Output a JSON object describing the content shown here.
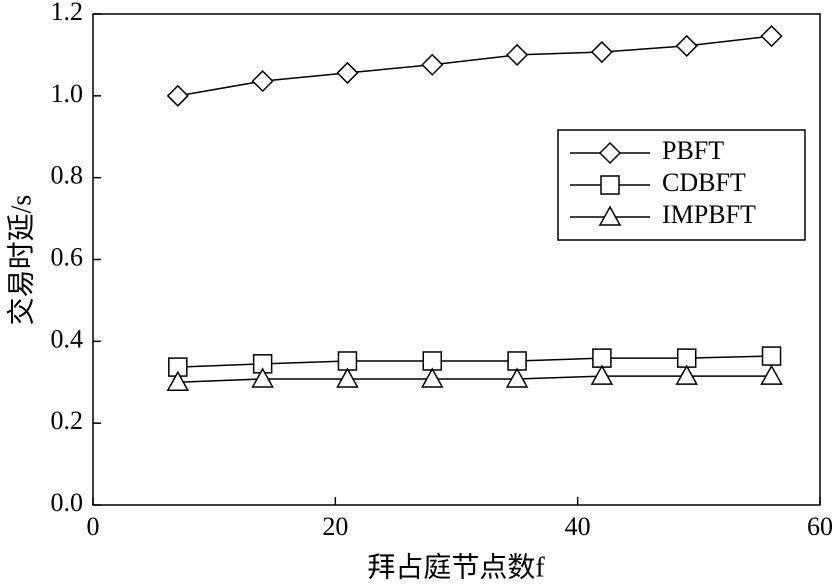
{
  "chart_data": {
    "type": "line",
    "x_label": "拜占庭节点数f",
    "y_label": "交易时延/s",
    "x": [
      7,
      14,
      21,
      28,
      35,
      42,
      49,
      56
    ],
    "series": [
      {
        "name": "PBFT",
        "color": "#000000",
        "marker": "diamond",
        "values": [
          1.0,
          1.036,
          1.056,
          1.076,
          1.1,
          1.107,
          1.122,
          1.146
        ]
      },
      {
        "name": "CDBFT",
        "color": "#000000",
        "marker": "square",
        "values": [
          0.337,
          0.345,
          0.352,
          0.352,
          0.352,
          0.359,
          0.359,
          0.364
        ]
      },
      {
        "name": "IMPBFT",
        "color": "#000000",
        "marker": "triangle",
        "values": [
          0.3,
          0.308,
          0.308,
          0.308,
          0.308,
          0.315,
          0.315,
          0.315
        ]
      }
    ],
    "xlim": [
      0,
      60
    ],
    "xticks": [
      0,
      20,
      40,
      60
    ],
    "ylim": [
      0,
      1.2
    ],
    "yticks": [
      {
        "value": 0,
        "label": "0.0"
      },
      0.2,
      0.4,
      0.6,
      0.8,
      {
        "value": 1,
        "label": "1.0"
      },
      1.2
    ],
    "legend": "upper right",
    "grid": false
  }
}
